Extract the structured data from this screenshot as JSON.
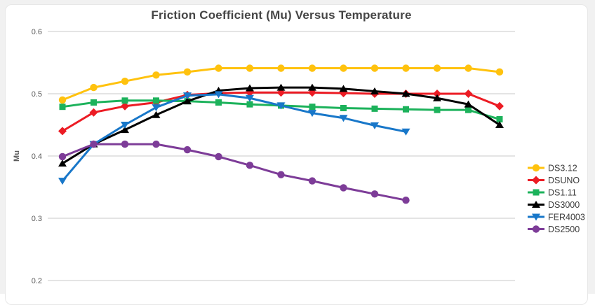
{
  "page": {
    "background_color": "#f1f1f1",
    "card_background": "#ffffff",
    "card_border_color": "#e7e7e7"
  },
  "chart_data": {
    "type": "line",
    "title": "Friction Coefficient (Mu) Versus Temperature",
    "title_color": "#454545",
    "xlabel": "",
    "ylabel": "Mu",
    "ylim": [
      0.2,
      0.6
    ],
    "y_ticks": [
      0.6,
      0.5,
      0.4,
      0.3,
      0.2
    ],
    "x_axis": {
      "tick_labels_visible": false,
      "note": "x axis labels cropped below image edge"
    },
    "grid": "horizontal-only",
    "gridline_color": "#c9c9c9",
    "legend_position": "right",
    "legend_text_color": "#3a3a3a",
    "series": [
      {
        "name": "DS3.12",
        "color": "#ffc20e",
        "marker": "circle",
        "values": [
          0.49,
          0.51,
          0.52,
          0.53,
          0.535,
          0.541,
          0.541,
          0.541,
          0.541,
          0.541,
          0.541,
          0.541,
          0.541,
          0.541,
          0.535
        ]
      },
      {
        "name": "DSUNO",
        "color": "#ec1c24",
        "marker": "diamond",
        "values": [
          0.44,
          0.47,
          0.48,
          0.486,
          0.498,
          0.501,
          0.502,
          0.502,
          0.502,
          0.501,
          0.5,
          0.5,
          0.5,
          0.5,
          0.48
        ]
      },
      {
        "name": "DS1.11",
        "color": "#1cb25b",
        "marker": "square",
        "values": [
          0.479,
          0.486,
          0.489,
          0.489,
          0.488,
          0.486,
          0.483,
          0.481,
          0.479,
          0.477,
          0.476,
          0.475,
          0.474,
          0.474,
          0.459
        ]
      },
      {
        "name": "DS3000",
        "color": "#000000",
        "marker": "triangle-up",
        "values": [
          0.388,
          0.419,
          0.442,
          0.466,
          0.488,
          0.505,
          0.509,
          0.51,
          0.51,
          0.508,
          0.504,
          0.5,
          0.493,
          0.483,
          0.45
        ]
      },
      {
        "name": "FER4003",
        "color": "#1877c9",
        "marker": "triangle-down",
        "values": [
          0.36,
          0.419,
          0.45,
          0.478,
          0.497,
          0.499,
          0.493,
          0.481,
          0.469,
          0.461,
          0.449,
          0.439
        ]
      },
      {
        "name": "DS2500",
        "color": "#7d3c98",
        "marker": "circle",
        "values": [
          0.399,
          0.419,
          0.419,
          0.419,
          0.41,
          0.399,
          0.385,
          0.37,
          0.36,
          0.349,
          0.339,
          0.329
        ]
      }
    ]
  }
}
